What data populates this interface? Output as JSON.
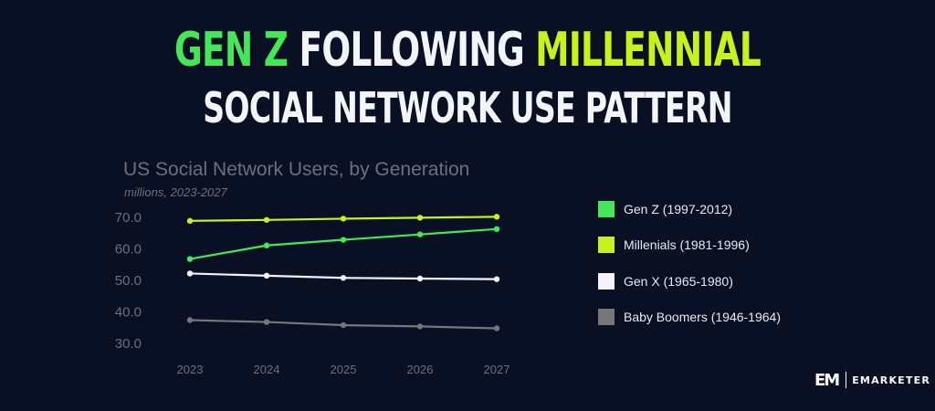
{
  "headline": {
    "line1_part1": "Gen Z",
    "line1_part2": "following",
    "line1_part3": "Millennial",
    "line2": "Social Network Use Pattern"
  },
  "brand": {
    "logo": "EM",
    "name": "EMARKETER"
  },
  "chart_data": {
    "type": "line",
    "title": "US Social Network Users, by Generation",
    "subtitle": "millions, 2023-2027",
    "x": [
      "2023",
      "2024",
      "2025",
      "2026",
      "2027"
    ],
    "ylim": [
      30,
      70
    ],
    "yticks": [
      "70.0",
      "60.0",
      "50.0",
      "40.0",
      "30.0"
    ],
    "ytick_values": [
      70,
      60,
      50,
      40,
      30
    ],
    "grid": false,
    "legend_position": "right",
    "series": [
      {
        "name": "Gen Z (1997-2012)",
        "color": "#44e65a",
        "values": [
          56.5,
          60.8,
          62.6,
          64.3,
          66.0
        ]
      },
      {
        "name": "Millenials (1981-1996)",
        "color": "#c8f21e",
        "values": [
          68.6,
          68.9,
          69.3,
          69.6,
          69.9
        ]
      },
      {
        "name": "Gen X (1965-1980)",
        "color": "#f4f2ff",
        "values": [
          51.9,
          51.2,
          50.5,
          50.3,
          50.1
        ]
      },
      {
        "name": "Baby Boomers (1946-1964)",
        "color": "#777777",
        "values": [
          37.1,
          36.5,
          35.5,
          35.1,
          34.5
        ]
      }
    ]
  }
}
